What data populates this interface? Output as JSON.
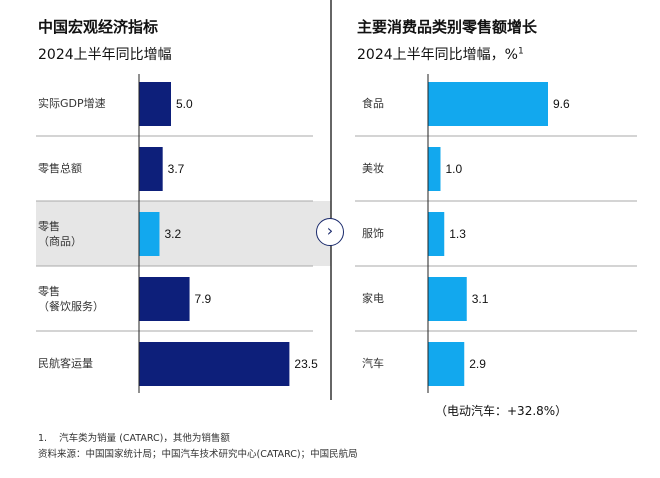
{
  "colors": {
    "dark": "#0d1f7a",
    "light": "#12a8ee",
    "highlight": "#e6e6e6"
  },
  "chart_data": [
    {
      "type": "bar",
      "orientation": "horizontal",
      "title": "中国宏观经济指标",
      "subtitle": "2024上半年同比增幅",
      "categories": [
        "实际GDP增速",
        "零售总额",
        "零售\n（商品）",
        "零售\n（餐饮服务）",
        "民航客运量"
      ],
      "values": [
        5.0,
        3.7,
        3.2,
        7.9,
        23.5
      ],
      "labels": [
        "5.0",
        "3.7",
        "3.2",
        "7.9",
        "23.5"
      ],
      "highlighted": [
        2
      ]
    },
    {
      "type": "bar",
      "orientation": "horizontal",
      "title": "主要消费品类别零售额增长",
      "subtitle": "2024上半年同比增幅，%",
      "subtitle_sup": "1",
      "categories": [
        "食品",
        "美妆",
        "服饰",
        "家电",
        "汽车"
      ],
      "values": [
        9.6,
        1.0,
        1.3,
        3.1,
        2.9
      ],
      "labels": [
        "9.6",
        "1.0",
        "1.3",
        "3.1",
        "2.9"
      ],
      "annotation": "（电动汽车：+32.8%）"
    }
  ],
  "footnotes": {
    "note1_num": "1.",
    "note1": "汽车类为销量 (CATARC)，其他为销售额",
    "source": "资料来源：中国国家统计局；中国汽车技术研究中心(CATARC)；中国民航局"
  },
  "icons": {
    "divider_button": "chevron-right-icon"
  }
}
